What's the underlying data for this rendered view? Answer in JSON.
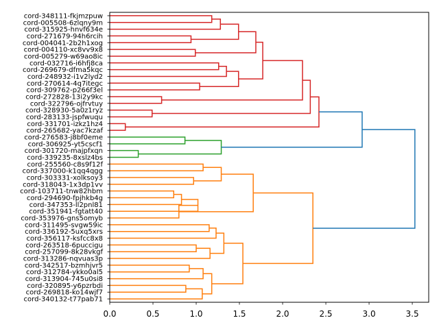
{
  "chart_data": {
    "type": "dendrogram",
    "orientation": "left",
    "title": "",
    "xlabel": "",
    "ylabel": "",
    "xlim": [
      0.0,
      3.69
    ],
    "xticks": [
      0.0,
      0.5,
      1.0,
      1.5,
      2.0,
      2.5,
      3.0,
      3.5
    ],
    "xtick_labels": [
      "0.0",
      "0.5",
      "1.0",
      "1.5",
      "2.0",
      "2.5",
      "3.0",
      "3.5"
    ],
    "grid": false,
    "colors": {
      "cluster_red": "#d62728",
      "cluster_green": "#2ca02c",
      "cluster_orange": "#ff7f0e",
      "above_threshold": "#1f77b4",
      "axis": "#000000"
    },
    "leaves": [
      "cord-348111-fkjmzpuw",
      "cord-005508-6zlqny9m",
      "cord-315925-hnvf634e",
      "cord-271679-94h6rcih",
      "cord-004041-2b2h1xog",
      "cord-004110-xc8vv9x8",
      "cord-005279-w69ao8ic",
      "cord-032716-i6hfj8ca",
      "cord-269679-dfma5kqc",
      "cord-248932-i1v2lyd2",
      "cord-270614-4q7itegc",
      "cord-309762-p266f3el",
      "cord-272828-13i2y9kc",
      "cord-322796-ojfrvtuy",
      "cord-328930-5a0z1ryz",
      "cord-283133-jspfwuqu",
      "cord-331701-izkz1hz4",
      "cord-265682-yac7kzaf",
      "cord-276583-j8bf0eme",
      "cord-306925-yt5cscf1",
      "cord-301720-majpfxqn",
      "cord-339235-8xslz4bs",
      "cord-255560-c8s9f12f",
      "cord-337000-k1qq4qgg",
      "cord-303331-xolksoy3",
      "cord-318043-1x3dp1vv",
      "cord-103711-tnw82hbm",
      "cord-294690-fpjhkb4g",
      "cord-347353-ll2pnl81",
      "cord-351941-fgtatt40",
      "cord-353976-gns5omyb",
      "cord-311495-svgw59ic",
      "cord-336192-5uxq5xrs",
      "cord-356117-ksfcc8x8",
      "cord-263518-6puccigu",
      "cord-257099-8k28vkgf",
      "cord-313286-nqvuas3p",
      "cord-342517-bzmhjvr5",
      "cord-312784-ykko0al5",
      "cord-313904-745u0si8",
      "cord-320895-y6pzrbdi",
      "cord-269818-ko14wjf7",
      "cord-340132-t77pab71"
    ],
    "merges": [
      {
        "id": "m1",
        "left": "L0",
        "right": "L1",
        "height": 1.18,
        "color": "cluster_red"
      },
      {
        "id": "m2",
        "left": "m1",
        "right": "L2",
        "height": 1.28,
        "color": "cluster_red"
      },
      {
        "id": "m3",
        "left": "L3",
        "right": "L4",
        "height": 0.94,
        "color": "cluster_red"
      },
      {
        "id": "m4",
        "left": "m2",
        "right": "m3",
        "height": 1.49,
        "color": "cluster_red"
      },
      {
        "id": "m5",
        "left": "L5",
        "right": "L6",
        "height": 0.99,
        "color": "cluster_red"
      },
      {
        "id": "m6",
        "left": "m4",
        "right": "m5",
        "height": 1.69,
        "color": "cluster_red"
      },
      {
        "id": "m7",
        "left": "L7",
        "right": "L8",
        "height": 1.26,
        "color": "cluster_red"
      },
      {
        "id": "m8",
        "left": "m7",
        "right": "L9",
        "height": 1.35,
        "color": "cluster_red"
      },
      {
        "id": "m9",
        "left": "L10",
        "right": "L11",
        "height": 1.04,
        "color": "cluster_red"
      },
      {
        "id": "m10",
        "left": "m8",
        "right": "m9",
        "height": 1.49,
        "color": "cluster_red"
      },
      {
        "id": "m11",
        "left": "m6",
        "right": "m10",
        "height": 1.77,
        "color": "cluster_red"
      },
      {
        "id": "m12",
        "left": "L12",
        "right": "L13",
        "height": 0.6,
        "color": "cluster_red"
      },
      {
        "id": "m13",
        "left": "m11",
        "right": "m12",
        "height": 2.23,
        "color": "cluster_red"
      },
      {
        "id": "m14",
        "left": "L14",
        "right": "L15",
        "height": 0.49,
        "color": "cluster_red"
      },
      {
        "id": "m15",
        "left": "m13",
        "right": "m14",
        "height": 2.32,
        "color": "cluster_red"
      },
      {
        "id": "m16",
        "left": "L16",
        "right": "L17",
        "height": 0.18,
        "color": "cluster_red"
      },
      {
        "id": "m17",
        "left": "m15",
        "right": "m16",
        "height": 2.42,
        "color": "cluster_red"
      },
      {
        "id": "m18",
        "left": "L18",
        "right": "L19",
        "height": 0.87,
        "color": "cluster_green"
      },
      {
        "id": "m19",
        "left": "L20",
        "right": "L21",
        "height": 0.33,
        "color": "cluster_green"
      },
      {
        "id": "m20",
        "left": "m18",
        "right": "m19",
        "height": 1.29,
        "color": "cluster_green"
      },
      {
        "id": "m21",
        "left": "m17",
        "right": "m20",
        "height": 2.92,
        "color": "above_threshold"
      },
      {
        "id": "m22",
        "left": "L22",
        "right": "L23",
        "height": 1.08,
        "color": "cluster_orange"
      },
      {
        "id": "m23",
        "left": "L24",
        "right": "L25",
        "height": 0.97,
        "color": "cluster_orange"
      },
      {
        "id": "m24",
        "left": "m22",
        "right": "m23",
        "height": 1.29,
        "color": "cluster_orange"
      },
      {
        "id": "m25",
        "left": "L26",
        "right": "L27",
        "height": 0.74,
        "color": "cluster_orange"
      },
      {
        "id": "m26",
        "left": "m25",
        "right": "L28",
        "height": 0.83,
        "color": "cluster_orange"
      },
      {
        "id": "m27",
        "left": "m26",
        "right": "L29",
        "height": 1.02,
        "color": "cluster_orange"
      },
      {
        "id": "m28",
        "left": "m27",
        "right": "L30",
        "height": 0.8,
        "color": "cluster_orange"
      },
      {
        "id": "m29",
        "left": "m24",
        "right": "m28",
        "height": 1.66,
        "color": "cluster_orange"
      },
      {
        "id": "m30",
        "left": "L31",
        "right": "L32",
        "height": 1.15,
        "color": "cluster_orange"
      },
      {
        "id": "m31",
        "left": "m30",
        "right": "L33",
        "height": 1.23,
        "color": "cluster_orange"
      },
      {
        "id": "m32",
        "left": "L34",
        "right": "L35",
        "height": 1.0,
        "color": "cluster_orange"
      },
      {
        "id": "m33",
        "left": "m32",
        "right": "L36",
        "height": 1.16,
        "color": "cluster_orange"
      },
      {
        "id": "m34",
        "left": "m31",
        "right": "m33",
        "height": 1.32,
        "color": "cluster_orange"
      },
      {
        "id": "m35",
        "left": "L37",
        "right": "L38",
        "height": 0.92,
        "color": "cluster_orange"
      },
      {
        "id": "m36",
        "left": "m35",
        "right": "L39",
        "height": 1.08,
        "color": "cluster_orange"
      },
      {
        "id": "m37",
        "left": "L40",
        "right": "L41",
        "height": 0.88,
        "color": "cluster_orange"
      },
      {
        "id": "m38",
        "left": "m37",
        "right": "L42",
        "height": 1.07,
        "color": "cluster_orange"
      },
      {
        "id": "m39",
        "left": "m36",
        "right": "m38",
        "height": 1.18,
        "color": "cluster_orange"
      },
      {
        "id": "m40",
        "left": "m34",
        "right": "m39",
        "height": 1.54,
        "color": "cluster_orange"
      },
      {
        "id": "m41",
        "left": "m29",
        "right": "m40",
        "height": 2.35,
        "color": "cluster_orange"
      },
      {
        "id": "m42",
        "left": "m21",
        "right": "m41",
        "height": 3.53,
        "color": "above_threshold"
      }
    ]
  }
}
